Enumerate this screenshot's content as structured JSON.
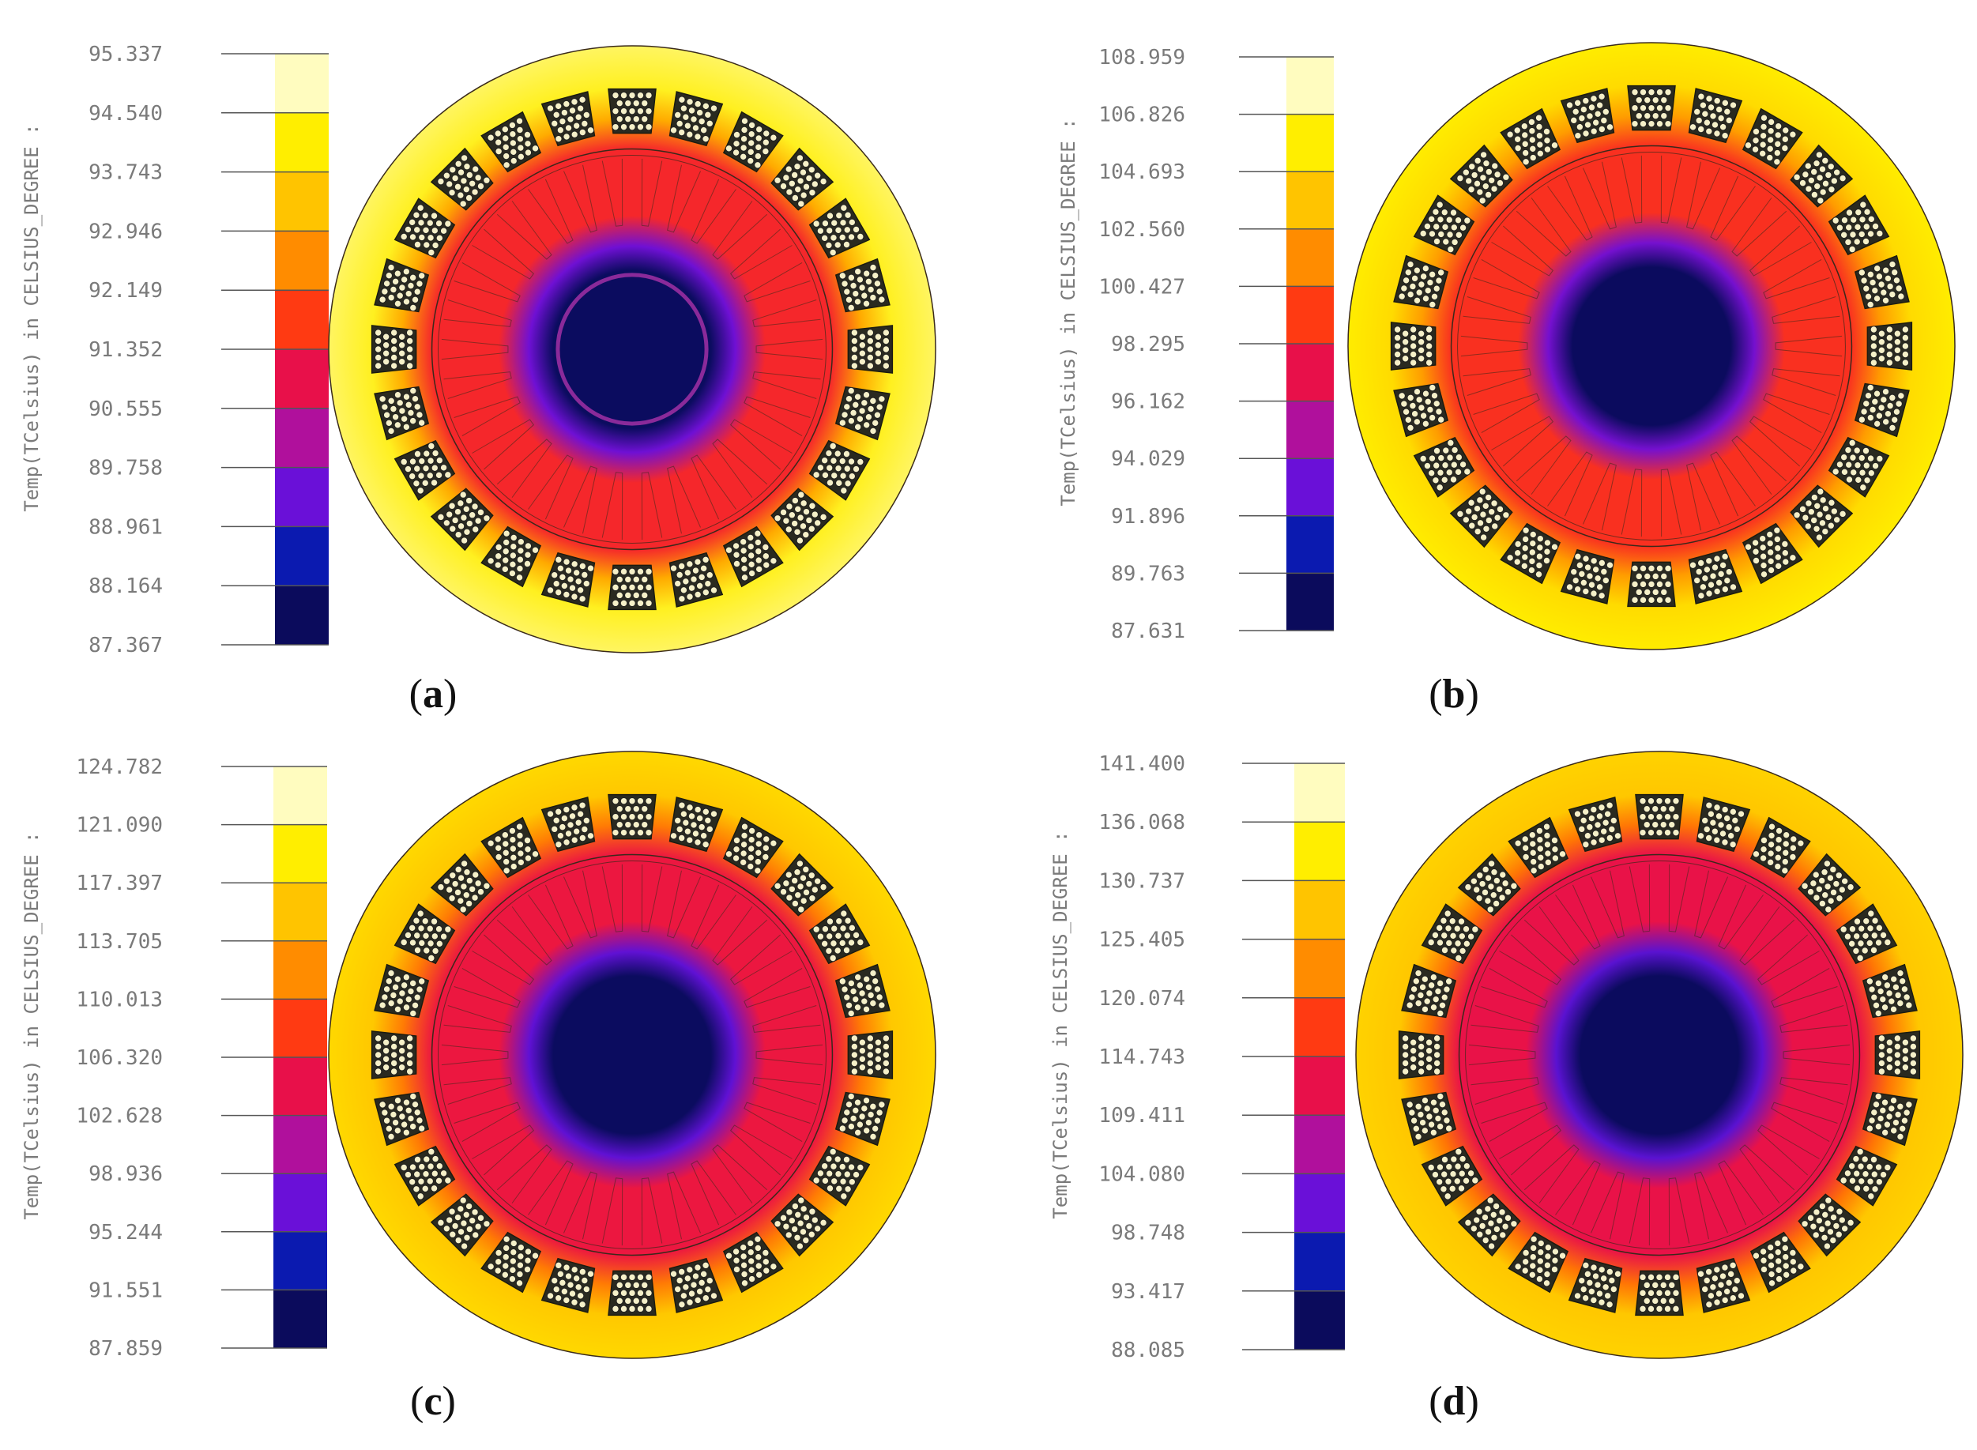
{
  "figure": {
    "colormap": [
      "#0b0b5c",
      "#0b1ab0",
      "#6a10d8",
      "#b0109c",
      "#e8104a",
      "#ff3a12",
      "#ff8c00",
      "#ffc400",
      "#ffee00",
      "#fffcbf"
    ],
    "colors": {
      "outer_yellow": "#fff200",
      "coil_dark": "#2a2a20",
      "rotor_core": "#0a0a55",
      "outline": "#3a2a1a"
    }
  },
  "chart_data": [
    {
      "type": "heatmap",
      "panel": "a",
      "caption_letter": "a",
      "axis_label": "Temp(TCelsius) in CELSIUS_DEGREE :",
      "ticks": [
        "95.337",
        "94.540",
        "93.743",
        "92.946",
        "92.149",
        "91.352",
        "90.555",
        "89.758",
        "88.961",
        "88.164",
        "87.367"
      ],
      "range": [
        87.367,
        95.337
      ],
      "field": {
        "rotor_core_value": 87.4,
        "rotor_edge_value": 91.4,
        "stator_value": 94.6,
        "outer_value": 94.9,
        "shaft_ring": true
      }
    },
    {
      "type": "heatmap",
      "panel": "b",
      "caption_letter": "b",
      "axis_label": "Temp(TCelsius) in CELSIUS_DEGREE :",
      "ticks": [
        "108.959",
        "106.826",
        "104.693",
        "102.560",
        "100.427",
        "98.295",
        "96.162",
        "94.029",
        "91.896",
        "89.763",
        "87.631"
      ],
      "range": [
        87.631,
        108.959
      ],
      "field": {
        "rotor_core_value": 87.7,
        "rotor_edge_value": 98.9,
        "stator_value": 105.5,
        "outer_value": 106.5,
        "shaft_ring": false
      }
    },
    {
      "type": "heatmap",
      "panel": "c",
      "caption_letter": "c",
      "axis_label": "Temp(TCelsius) in CELSIUS_DEGREE :",
      "ticks": [
        "124.782",
        "121.090",
        "117.397",
        "113.705",
        "110.013",
        "106.320",
        "102.628",
        "98.936",
        "95.244",
        "91.551",
        "87.859"
      ],
      "range": [
        87.859,
        124.782
      ],
      "field": {
        "rotor_core_value": 88.0,
        "rotor_edge_value": 105.0,
        "stator_value": 117.0,
        "outer_value": 118.5,
        "shaft_ring": false
      }
    },
    {
      "type": "heatmap",
      "panel": "d",
      "caption_letter": "d",
      "axis_label": "Temp(TCelsius) in CELSIUS_DEGREE :",
      "ticks": [
        "141.400",
        "136.068",
        "130.737",
        "125.405",
        "120.074",
        "114.743",
        "109.411",
        "104.080",
        "98.748",
        "93.417",
        "88.085"
      ],
      "range": [
        88.085,
        141.4
      ],
      "field": {
        "rotor_core_value": 88.2,
        "rotor_edge_value": 112.0,
        "stator_value": 130.0,
        "outer_value": 131.5,
        "shaft_ring": false
      }
    }
  ]
}
